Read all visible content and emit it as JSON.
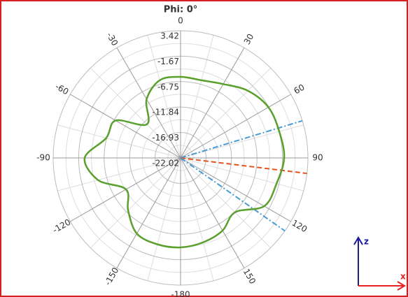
{
  "chart_data": {
    "type": "polar",
    "title": "Phi: 0°",
    "theta": [
      -180,
      -165,
      -150,
      -135,
      -120,
      -105,
      -90,
      -75,
      -60,
      -45,
      -30,
      -15,
      0,
      15,
      30,
      45,
      60,
      75,
      90,
      105,
      120,
      135,
      150,
      165
    ],
    "series": [
      {
        "color": "#5aa02c",
        "values": [
          -4.13,
          -4.13,
          -4.55,
          -7.2,
          -9.44,
          -4.96,
          -2.87,
          -6.64,
          -7.06,
          -12.51,
          -8.46,
          -5.94,
          -5.8,
          -5.94,
          -4.96,
          -3.01,
          -1.75,
          -1.61,
          -1.33,
          -2.17,
          -2.73,
          -6.64,
          -5.24,
          -4.55
        ]
      }
    ],
    "markers": [
      {
        "angle": 73,
        "color": "#4a9ad4",
        "style": "dashdot"
      },
      {
        "angle": 97,
        "color": "#e8501c",
        "style": "dash"
      },
      {
        "angle": 125,
        "color": "#4a9ad4",
        "style": "dashdot"
      }
    ],
    "rlim": [
      -22.02,
      3.42
    ],
    "rticks": [
      -22.02,
      -16.93,
      -11.84,
      -6.75,
      -1.67,
      3.42
    ],
    "thetaticks": [
      0,
      30,
      60,
      90,
      120,
      150,
      -180,
      -150,
      -120,
      -90,
      -60,
      -30
    ],
    "axes_indicator": {
      "vertical": "z",
      "horizontal": "x"
    }
  }
}
